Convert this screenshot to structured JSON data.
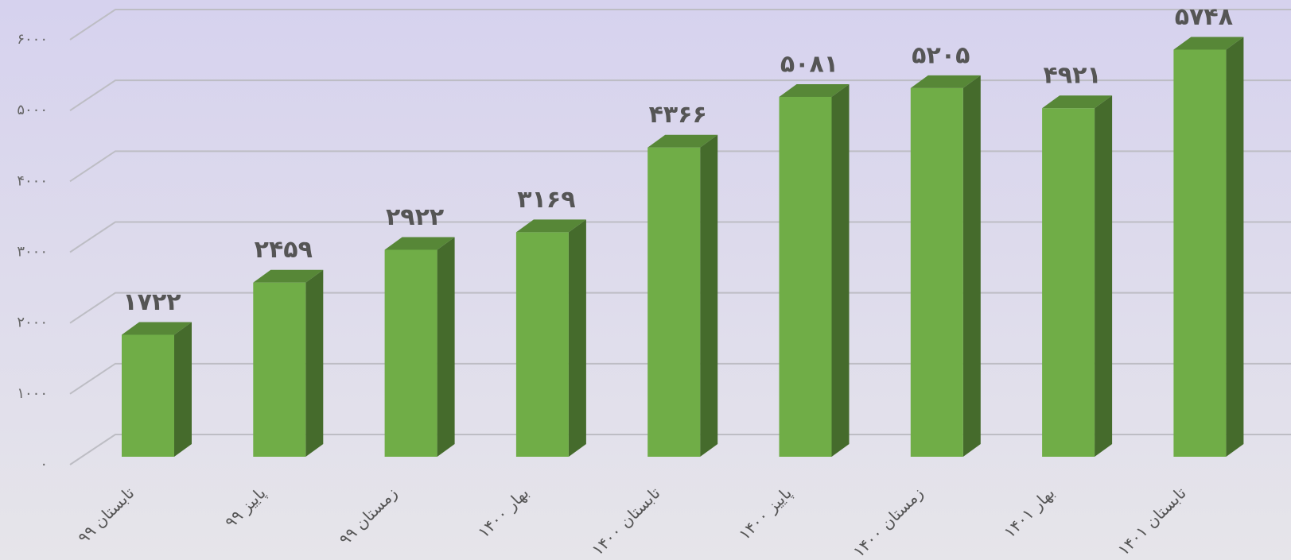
{
  "chart_data": {
    "type": "bar3d",
    "categories": [
      "تابستان ۹۹",
      "پاییز ۹۹",
      "زمستان ۹۹",
      "بهار ۱۴۰۰",
      "تابستان ۱۴۰۰",
      "پاییز ۱۴۰۰",
      "زمستان ۱۴۰۰",
      "بهار ۱۴۰۱",
      "تابستان ۱۴۰۱"
    ],
    "values": [
      1722,
      2459,
      2922,
      3169,
      4366,
      5081,
      5205,
      4921,
      5748
    ],
    "value_labels": [
      "۱۷۲۲",
      "۲۴۵۹",
      "۲۹۲۲",
      "۳۱۶۹",
      "۴۳۶۶",
      "۵۰۸۱",
      "۵۲۰۵",
      "۴۹۲۱",
      "۵۷۴۸"
    ],
    "color": "#70ad47",
    "ylim": [
      0,
      6000
    ],
    "yticks": [
      {
        "value": 0,
        "label": "۰"
      },
      {
        "value": 1000,
        "label": "۱۰۰۰"
      },
      {
        "value": 2000,
        "label": "۲۰۰۰"
      },
      {
        "value": 3000,
        "label": "۳۰۰۰"
      },
      {
        "value": 4000,
        "label": "۴۰۰۰"
      },
      {
        "value": 5000,
        "label": "۵۰۰۰"
      },
      {
        "value": 6000,
        "label": "۶۰۰۰"
      }
    ],
    "grid": true
  }
}
